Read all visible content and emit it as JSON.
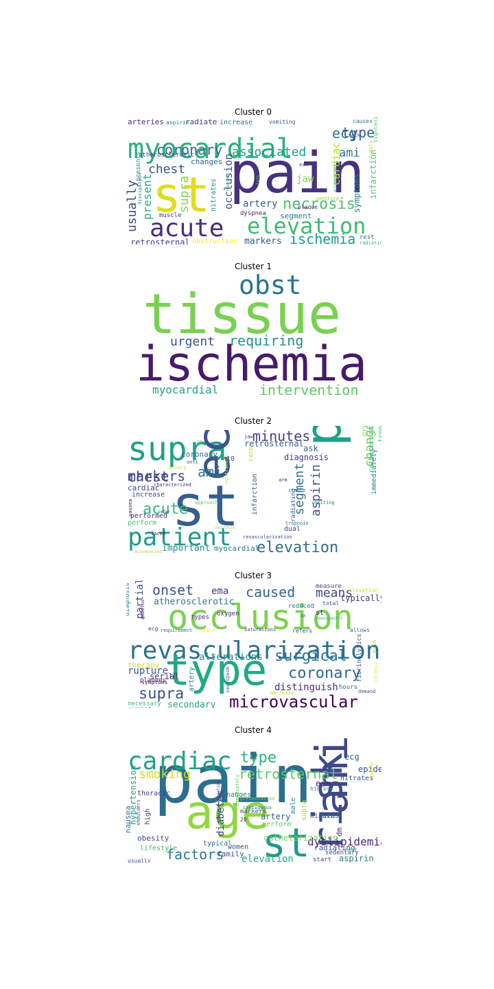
{
  "panels": [
    {
      "title": "Cluster 0",
      "words": [
        {
          "text": "pain",
          "color": "#46327e"
        },
        {
          "text": "st",
          "color": "#e0dd1a"
        },
        {
          "text": "myocardial",
          "color": "#2cb17e"
        },
        {
          "text": "acute",
          "color": "#472d7b"
        },
        {
          "text": "elevation",
          "color": "#3dbc74"
        },
        {
          "text": "coronary",
          "color": "#31688e"
        },
        {
          "text": "ecg",
          "color": "#2c728e"
        },
        {
          "text": "type",
          "color": "#355f8d"
        },
        {
          "text": "associated",
          "color": "#1f9e89"
        },
        {
          "text": "ami",
          "color": "#2d708e"
        },
        {
          "text": "chest",
          "color": "#3b528b"
        },
        {
          "text": "necrosis",
          "color": "#4ac16d"
        },
        {
          "text": "ischemia",
          "color": "#1f9a8a"
        },
        {
          "text": "usually",
          "color": "#404688"
        },
        {
          "text": "present",
          "color": "#25ab82"
        },
        {
          "text": "supra",
          "color": "#86d549"
        },
        {
          "text": "occlusion",
          "color": "#3e4989"
        },
        {
          "text": "artery",
          "color": "#33638d"
        },
        {
          "text": "jaw",
          "color": "#7ad151"
        },
        {
          "text": "cardiac",
          "color": "#b5de2b"
        },
        {
          "text": "symptoms",
          "color": "#277f8e"
        },
        {
          "text": "infarction",
          "color": "#52c569"
        },
        {
          "text": "markers",
          "color": "#39568c"
        },
        {
          "text": "retrosternal",
          "color": "#433e85"
        },
        {
          "text": "arteries",
          "color": "#482878"
        },
        {
          "text": "radiate",
          "color": "#443b84"
        },
        {
          "text": "increase",
          "color": "#2a768e"
        },
        {
          "text": "aspirin",
          "color": "#26828e"
        },
        {
          "text": "vomiting",
          "color": "#3b528b"
        },
        {
          "text": "causes",
          "color": "#2c728e"
        },
        {
          "text": "tightening",
          "color": "#5ec962"
        },
        {
          "text": "changes",
          "color": "#355f8d"
        },
        {
          "text": "atherosclerotic",
          "color": "#414487"
        },
        {
          "text": "nitrates",
          "color": "#23888e"
        },
        {
          "text": "dyspnea",
          "color": "#482475"
        },
        {
          "text": "segment",
          "color": "#2a788e"
        },
        {
          "text": "muscle",
          "color": "#46327e"
        },
        {
          "text": "presents",
          "color": "#21918c"
        },
        {
          "text": "obstruction",
          "color": "#fde725"
        },
        {
          "text": "rest",
          "color": "#31688e"
        },
        {
          "text": "radiating",
          "color": "#2fb47c"
        },
        {
          "text": "nausea",
          "color": "#35b779"
        },
        {
          "text": "plaque",
          "color": "#472c7a"
        },
        {
          "text": "eam",
          "color": "#443983"
        },
        {
          "text": "neck",
          "color": "#3b528b"
        },
        {
          "text": "supply",
          "color": "#addc30"
        },
        {
          "text": "accompanied",
          "color": "#21a685"
        },
        {
          "text": "sweating",
          "color": "#9bd93c"
        },
        {
          "text": "left",
          "color": "#6ece58"
        },
        {
          "text": "dissipation",
          "color": "#25848e"
        }
      ]
    },
    {
      "title": "Cluster 1",
      "words": [
        {
          "text": "tissue",
          "color": "#7ad151"
        },
        {
          "text": "ischemia",
          "color": "#481a6c"
        },
        {
          "text": "obst",
          "color": "#2c728e"
        },
        {
          "text": "urgent",
          "color": "#3b528b"
        },
        {
          "text": "requiring",
          "color": "#21918c"
        },
        {
          "text": "myocardial",
          "color": "#2a9d8f"
        },
        {
          "text": "intervention",
          "color": "#5ec962"
        }
      ]
    },
    {
      "title": "Cluster 2",
      "words": [
        {
          "text": "supra",
          "color": "#1fa187"
        },
        {
          "text": "st",
          "color": "#355f8d"
        },
        {
          "text": "ecg",
          "color": "#39568c"
        },
        {
          "text": "pain",
          "color": "#1fa088"
        },
        {
          "text": "patient",
          "color": "#1e9b8a"
        },
        {
          "text": "elevation",
          "color": "#2d708e"
        },
        {
          "text": "minutes",
          "color": "#414487"
        },
        {
          "text": "chest",
          "color": "#453781"
        },
        {
          "text": "markers",
          "color": "#3e4989"
        },
        {
          "text": "ami",
          "color": "#2a778e"
        },
        {
          "text": "acute",
          "color": "#38b977"
        },
        {
          "text": "segment",
          "color": "#2e6f8e"
        },
        {
          "text": "aspirin",
          "color": "#39568c"
        },
        {
          "text": "changes",
          "color": "#73d056"
        },
        {
          "text": "retrosternal",
          "color": "#3b528b"
        },
        {
          "text": "diagnosis",
          "color": "#443983"
        },
        {
          "text": "ask",
          "color": "#33638d"
        },
        {
          "text": "important",
          "color": "#228c8d"
        },
        {
          "text": "myocardial",
          "color": "#287c8e"
        },
        {
          "text": "cardiac",
          "color": "#424086"
        },
        {
          "text": "increase",
          "color": "#3f4788"
        },
        {
          "text": "performed",
          "color": "#472d7b"
        },
        {
          "text": "perform",
          "color": "#4ac16d"
        },
        {
          "text": "coronary",
          "color": "#31688e"
        },
        {
          "text": "presence",
          "color": "#86d549"
        },
        {
          "text": "troponins",
          "color": "#35b779"
        },
        {
          "text": "catheterization",
          "color": "#3dbc74"
        },
        {
          "text": "immediately",
          "color": "#2a788e"
        },
        {
          "text": "infarction",
          "color": "#3a548c"
        },
        {
          "text": "radiating",
          "color": "#355e8d"
        },
        {
          "text": "dual",
          "color": "#433e85"
        },
        {
          "text": "case",
          "color": "#bddf26"
        },
        {
          "text": "revascularization",
          "color": "#3b528b"
        },
        {
          "text": "stable",
          "color": "#277f8e"
        },
        {
          "text": "vomiting",
          "color": "#26828e"
        },
        {
          "text": "arm",
          "color": "#482878"
        },
        {
          "text": "troponin",
          "color": "#2c718e"
        },
        {
          "text": "necrosis",
          "color": "#8bd646"
        },
        {
          "text": "approach",
          "color": "#5ec962"
        },
        {
          "text": "faced",
          "color": "#471365"
        },
        {
          "text": "accompanied",
          "color": "#a8db34"
        },
        {
          "text": "characterized",
          "color": "#46327e"
        },
        {
          "text": "nausea",
          "color": "#440154"
        },
        {
          "text": "refer",
          "color": "#3b528b"
        },
        {
          "text": "jaw",
          "color": "#482878"
        },
        {
          "text": "10",
          "color": "#3e4a89"
        },
        {
          "text": "20",
          "color": "#7ad151"
        },
        {
          "text": "anti",
          "color": "#31688e"
        },
        {
          "text": "artery",
          "color": "#c2df23"
        },
        {
          "text": "ventricular",
          "color": "#d8e219"
        }
      ]
    },
    {
      "title": "Cluster 3",
      "words": [
        {
          "text": "occlusion",
          "color": "#7ad151"
        },
        {
          "text": "revascularization",
          "color": "#2c728e"
        },
        {
          "text": "type",
          "color": "#22a884"
        },
        {
          "text": "microvascular",
          "color": "#440154"
        },
        {
          "text": "coronary",
          "color": "#31688e"
        },
        {
          "text": "surgical",
          "color": "#2c728e"
        },
        {
          "text": "supra",
          "color": "#3b528b"
        },
        {
          "text": "onset",
          "color": "#3b528b"
        },
        {
          "text": "caused",
          "color": "#31688e"
        },
        {
          "text": "means",
          "color": "#404688"
        },
        {
          "text": "ema",
          "color": "#443983"
        },
        {
          "text": "atherosclerotic",
          "color": "#2a788e"
        },
        {
          "text": "partial",
          "color": "#3e4989"
        },
        {
          "text": "alterations",
          "color": "#21918c"
        },
        {
          "text": "rupture",
          "color": "#3b528b"
        },
        {
          "text": "therapy",
          "color": "#d2e21b"
        },
        {
          "text": "serial",
          "color": "#46337f"
        },
        {
          "text": "distinguish",
          "color": "#472f7d"
        },
        {
          "text": "secondary",
          "color": "#21a685"
        },
        {
          "text": "typically",
          "color": "#46327e"
        },
        {
          "text": "measure",
          "color": "#414487"
        },
        {
          "text": "elevation",
          "color": "#d8e219"
        },
        {
          "text": "total",
          "color": "#3b528b"
        },
        {
          "text": "reduced",
          "color": "#2a788e"
        },
        {
          "text": "oxygen",
          "color": "#482878"
        },
        {
          "text": "types",
          "color": "#46327e"
        },
        {
          "text": "st",
          "color": "#472d7b"
        },
        {
          "text": "hours",
          "color": "#2c728e"
        },
        {
          "text": "fibrinolytics",
          "color": "#3b528b"
        },
        {
          "text": "artery",
          "color": "#2a788e"
        },
        {
          "text": "diagnosis",
          "color": "#25848e"
        },
        {
          "text": "embolus",
          "color": "#481f70"
        },
        {
          "text": "refers",
          "color": "#3e4989"
        },
        {
          "text": "allows",
          "color": "#33638d"
        },
        {
          "text": "saturations",
          "color": "#443a83"
        },
        {
          "text": "requirement",
          "color": "#31688e"
        },
        {
          "text": "face",
          "color": "#fde725"
        },
        {
          "text": "ecg",
          "color": "#453781"
        },
        {
          "text": "plaques",
          "color": "#482475"
        },
        {
          "text": "symptoms",
          "color": "#471063"
        },
        {
          "text": "necessary",
          "color": "#35b779"
        },
        {
          "text": "carried",
          "color": "#3e4989"
        },
        {
          "text": "vasospastic",
          "color": "#29af7f"
        },
        {
          "text": "vasospasm",
          "color": "#33638d"
        },
        {
          "text": "decrease",
          "color": "#b5de2b"
        },
        {
          "text": "demand",
          "color": "#3b528b"
        },
        {
          "text": "pain",
          "color": "#90d743"
        },
        {
          "text": "chronic",
          "color": "#e5e419"
        },
        {
          "text": "12",
          "color": "#443983"
        },
        {
          "text": "90",
          "color": "#2c728e"
        }
      ]
    },
    {
      "title": "Cluster 4",
      "words": [
        {
          "text": "pain",
          "color": "#2c6e8e"
        },
        {
          "text": "age",
          "color": "#90d743"
        },
        {
          "text": "risk",
          "color": "#3e4989"
        },
        {
          "text": "ami",
          "color": "#3f4889"
        },
        {
          "text": "st",
          "color": "#1f9a8a"
        },
        {
          "text": "cardiac",
          "color": "#1fa188"
        },
        {
          "text": "type",
          "color": "#2db27d"
        },
        {
          "text": "smoking",
          "color": "#d2e21b"
        },
        {
          "text": "retrosternal",
          "color": "#5ec962"
        },
        {
          "text": "factors",
          "color": "#2a788e"
        },
        {
          "text": "elevation",
          "color": "#22a785"
        },
        {
          "text": "dyslipidemia",
          "color": "#482475"
        },
        {
          "text": "ecg",
          "color": "#33638d"
        },
        {
          "text": "epidemiology",
          "color": "#3b528b"
        },
        {
          "text": "nitrates",
          "color": "#3b528b"
        },
        {
          "text": "eam",
          "color": "#482878"
        },
        {
          "text": "history",
          "color": "#2a788e"
        },
        {
          "text": "nausea",
          "color": "#2c728e"
        },
        {
          "text": "thoracic",
          "color": "#46327e"
        },
        {
          "text": "hypertension",
          "color": "#2a9d8f"
        },
        {
          "text": "high",
          "color": "#443983"
        },
        {
          "text": "obesity",
          "color": "#414487"
        },
        {
          "text": "lifestyle",
          "color": "#38b977"
        },
        {
          "text": "diabetes",
          "color": "#3e4989"
        },
        {
          "text": "changes",
          "color": "#287c8e"
        },
        {
          "text": "markers",
          "color": "#3b528b"
        },
        {
          "text": "20",
          "color": "#482878"
        },
        {
          "text": "male",
          "color": "#21918c"
        },
        {
          "text": "supra",
          "color": "#a8db34"
        },
        {
          "text": "artery",
          "color": "#355f8d"
        },
        {
          "text": "perform",
          "color": "#5ec962"
        },
        {
          "text": "catheterization",
          "color": "#7ad151"
        },
        {
          "text": "minutes",
          "color": "#31688e"
        },
        {
          "text": "acute",
          "color": "#2c728e"
        },
        {
          "text": "dm",
          "color": "#482878"
        },
        {
          "text": "radiating",
          "color": "#3b528b"
        },
        {
          "text": "sedentary",
          "color": "#3e4989"
        },
        {
          "text": "rest",
          "color": "#2a9d8f"
        },
        {
          "text": "family",
          "color": "#39568c"
        },
        {
          "text": "typical",
          "color": "#2c728e"
        },
        {
          "text": "women",
          "color": "#3b528b"
        },
        {
          "text": "start",
          "color": "#414487"
        },
        {
          "text": "aspirin",
          "color": "#2a788e"
        },
        {
          "text": "usually",
          "color": "#3b528b"
        },
        {
          "text": "shoulders",
          "color": "#433e85"
        },
        {
          "text": "presentation",
          "color": "#6ece58"
        },
        {
          "text": "revascularization",
          "color": "#46327e"
        },
        {
          "text": "types",
          "color": "#e5e419"
        },
        {
          "text": "contiguous",
          "color": "#2c728e"
        },
        {
          "text": "immediately",
          "color": "#5ec962"
        }
      ]
    }
  ]
}
